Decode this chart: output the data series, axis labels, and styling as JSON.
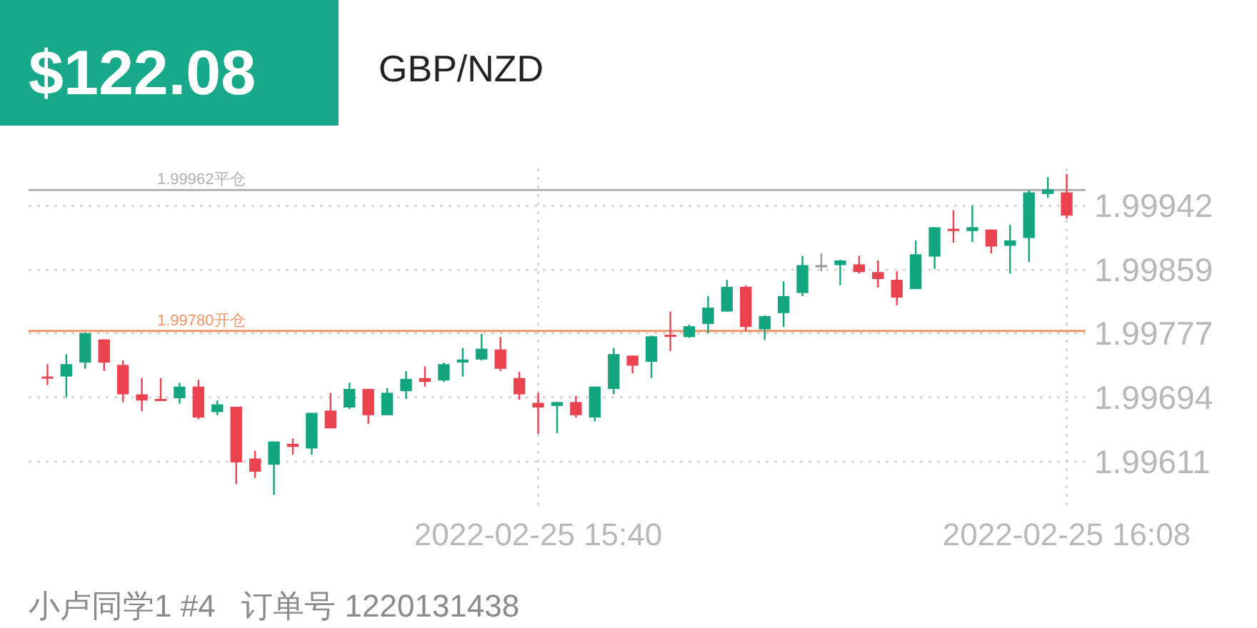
{
  "chart_data": {
    "type": "candlestick",
    "title": "$122.08",
    "subtitle": "GBP/NZD",
    "x": [
      "2022-02-25T15:14",
      "2022-02-25T15:15",
      "2022-02-25T15:16",
      "2022-02-25T15:17",
      "2022-02-25T15:18",
      "2022-02-25T15:19",
      "2022-02-25T15:20",
      "2022-02-25T15:21",
      "2022-02-25T15:22",
      "2022-02-25T15:23",
      "2022-02-25T15:24",
      "2022-02-25T15:25",
      "2022-02-25T15:26",
      "2022-02-25T15:27",
      "2022-02-25T15:28",
      "2022-02-25T15:29",
      "2022-02-25T15:30",
      "2022-02-25T15:31",
      "2022-02-25T15:32",
      "2022-02-25T15:33",
      "2022-02-25T15:34",
      "2022-02-25T15:35",
      "2022-02-25T15:36",
      "2022-02-25T15:37",
      "2022-02-25T15:38",
      "2022-02-25T15:39",
      "2022-02-25T15:40",
      "2022-02-25T15:41",
      "2022-02-25T15:42",
      "2022-02-25T15:43",
      "2022-02-25T15:44",
      "2022-02-25T15:45",
      "2022-02-25T15:46",
      "2022-02-25T15:47",
      "2022-02-25T15:48",
      "2022-02-25T15:49",
      "2022-02-25T15:50",
      "2022-02-25T15:51",
      "2022-02-25T15:52",
      "2022-02-25T15:53",
      "2022-02-25T15:54",
      "2022-02-25T15:55",
      "2022-02-25T15:56",
      "2022-02-25T15:57",
      "2022-02-25T15:58",
      "2022-02-25T15:59",
      "2022-02-25T16:00",
      "2022-02-25T16:01",
      "2022-02-25T16:02",
      "2022-02-25T16:03",
      "2022-02-25T16:04",
      "2022-02-25T16:05",
      "2022-02-25T16:06",
      "2022-02-25T16:07",
      "2022-02-25T16:08"
    ],
    "ohlc": [
      [
        1.99721,
        1.99737,
        1.9971,
        1.9972
      ],
      [
        1.99721,
        1.9975,
        1.99694,
        1.99737
      ],
      [
        1.99739,
        1.99778,
        1.99731,
        1.99777
      ],
      [
        1.99769,
        1.99769,
        1.99728,
        1.99739
      ],
      [
        1.99736,
        1.99742,
        1.99688,
        1.99698
      ],
      [
        1.99698,
        1.99719,
        1.99676,
        1.9969
      ],
      [
        1.99692,
        1.99719,
        1.9969,
        1.99691
      ],
      [
        1.99693,
        1.99713,
        1.99686,
        1.99708
      ],
      [
        1.99708,
        1.99717,
        1.99666,
        1.99668
      ],
      [
        1.99675,
        1.9969,
        1.99671,
        1.99685
      ],
      [
        1.99682,
        1.99682,
        1.99582,
        1.9961
      ],
      [
        1.99615,
        1.99625,
        1.9959,
        1.99598
      ],
      [
        1.99607,
        1.99637,
        1.99568,
        1.99637
      ],
      [
        1.99634,
        1.99641,
        1.9962,
        1.9963
      ],
      [
        1.99628,
        1.99674,
        1.9962,
        1.99674
      ],
      [
        1.99677,
        1.997,
        1.99654,
        1.99654
      ],
      [
        1.99681,
        1.99713,
        1.99679,
        1.99705
      ],
      [
        1.99705,
        1.99705,
        1.9966,
        1.99671
      ],
      [
        1.99671,
        1.99706,
        1.99671,
        1.997
      ],
      [
        1.99702,
        1.99728,
        1.99692,
        1.99718
      ],
      [
        1.99719,
        1.99734,
        1.99708,
        1.99714
      ],
      [
        1.99716,
        1.99739,
        1.99714,
        1.99737
      ],
      [
        1.99739,
        1.99758,
        1.99721,
        1.99743
      ],
      [
        1.99743,
        1.99776,
        1.99742,
        1.99757
      ],
      [
        1.99756,
        1.99772,
        1.99728,
        1.99731
      ],
      [
        1.99719,
        1.99727,
        1.99691,
        1.99698
      ],
      [
        1.99687,
        1.997,
        1.99647,
        1.99681
      ],
      [
        1.99683,
        1.99688,
        1.99648,
        1.99688
      ],
      [
        1.99688,
        1.99696,
        1.99668,
        1.99671
      ],
      [
        1.99668,
        1.99708,
        1.99663,
        1.99708
      ],
      [
        1.99705,
        1.99758,
        1.99698,
        1.9975
      ],
      [
        1.99748,
        1.99748,
        1.99725,
        1.99735
      ],
      [
        1.9974,
        1.99774,
        1.99719,
        1.99773
      ],
      [
        1.99775,
        1.99805,
        1.99754,
        1.99773
      ],
      [
        1.99772,
        1.99788,
        1.99771,
        1.99786
      ],
      [
        1.99789,
        1.99825,
        1.99777,
        1.9981
      ],
      [
        1.99805,
        1.99846,
        1.99805,
        1.99837
      ],
      [
        1.99837,
        1.99839,
        1.9978,
        1.99785
      ],
      [
        1.99782,
        1.998,
        1.99768,
        1.99799
      ],
      [
        1.99803,
        1.99844,
        1.99785,
        1.99825
      ],
      [
        1.99829,
        1.99877,
        1.99825,
        1.99865
      ],
      [
        1.99865,
        1.9988,
        1.99857,
        1.99865
      ],
      [
        1.99865,
        1.99872,
        1.99839,
        1.99871
      ],
      [
        1.99866,
        1.99877,
        1.99854,
        1.99856
      ],
      [
        1.99856,
        1.99871,
        1.99836,
        1.99847
      ],
      [
        1.99846,
        1.99857,
        1.99813,
        1.99823
      ],
      [
        1.99834,
        1.99897,
        1.99834,
        1.99879
      ],
      [
        1.99876,
        1.99914,
        1.9986,
        1.99914
      ],
      [
        1.99912,
        1.99936,
        1.99894,
        1.99909
      ],
      [
        1.99909,
        1.99942,
        1.99895,
        1.99914
      ],
      [
        1.99911,
        1.99911,
        1.9988,
        1.99889
      ],
      [
        1.9989,
        1.99917,
        1.99854,
        1.99897
      ],
      [
        1.999,
        1.99962,
        1.99869,
        1.99959
      ],
      [
        1.99957,
        1.99979,
        1.99952,
        1.99963
      ],
      [
        1.99959,
        1.99983,
        1.99925,
        1.99929
      ]
    ],
    "xlim": [
      "2022-02-25T15:13",
      "2022-02-25T16:09"
    ],
    "xticks": [
      {
        "value": "2022-02-25T15:40",
        "label": "2022-02-25 15:40"
      },
      {
        "value": "2022-02-25T16:08",
        "label": "2022-02-25 16:08"
      }
    ],
    "ylim": [
      1.9955,
      1.9999
    ],
    "yticks": [
      1.99942,
      1.99859,
      1.99777,
      1.99694,
      1.99611
    ],
    "grid": true,
    "ref_lines": [
      {
        "axis": "y",
        "value": 1.99962,
        "label": "1.99962平仓",
        "color": "#b0b0b0"
      },
      {
        "axis": "y",
        "value": 1.9978,
        "label": "1.99780开仓",
        "color": "#f0956a"
      }
    ],
    "annotations": [
      "小卢同学1 #4   订单号 1220131438"
    ]
  }
}
